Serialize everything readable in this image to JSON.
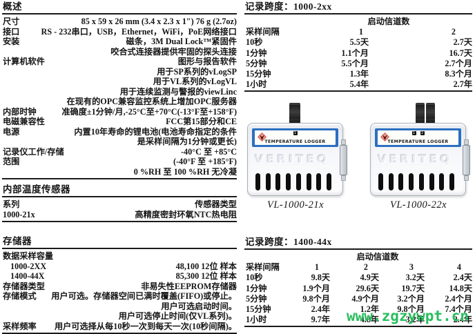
{
  "left_column": {
    "sections": [
      {
        "id": "overview",
        "title": "概述",
        "rows": [
          {
            "label": "尺寸",
            "values": [
              "85 x 59 x 26 mm (3.4 x 2.3 x 1″) 76 g (2.7oz)"
            ]
          },
          {
            "label": "接口",
            "values": [
              "RS - 232串口，USB，Ethernet，WiFi，PoE网络接口"
            ]
          },
          {
            "label": "安装",
            "values": [
              "磁条，3M Dual Lock™紧固件",
              "咬合式连接器提供牢固的探头连接"
            ]
          },
          {
            "label": "计算机软件",
            "values": [
              "图形与报告软件",
              "用于SP系列的vLogSP",
              "用于VL系列的vLogVL",
              "用于连续监测与警报的viewLinc",
              "在现有的OPC兼容监控系统上增加OPC服务器"
            ]
          },
          {
            "label": "内部时钟",
            "values": [
              "准确度±1分钟/月,-25°C至+70°C(-13°F至+158°F)"
            ]
          },
          {
            "label": "电磁兼容性",
            "values": [
              "FCC第15部分和CE"
            ]
          },
          {
            "label": "电源",
            "values": [
              "内置10年寿命的锂电池(电池寿命指定的条件",
              "是采样间隔为1分钟或更长)"
            ]
          },
          {
            "label": "记录仪工作/存储",
            "values": [
              "-40°C 至 +85°C"
            ]
          },
          {
            "label": "范围",
            "values": [
              "(-40°F 至 +185°F)",
              "0 %RH 至 100 %RH 无冷凝"
            ]
          }
        ]
      },
      {
        "id": "sensor",
        "title": "内部温度传感器",
        "rows": [
          {
            "label": "系列",
            "values": [
              "传感器类型"
            ]
          },
          {
            "label": "1000-21x",
            "values": [
              "高精度密封环氧NTC热电阻"
            ]
          }
        ]
      },
      {
        "id": "memory",
        "title": "存储器",
        "rows": [
          {
            "label": "数据采样容量",
            "values": []
          },
          {
            "label": "1000-2XX",
            "indent": true,
            "values": [
              "48,100 12位 样本"
            ]
          },
          {
            "label": "1400-44X",
            "indent": true,
            "values": [
              "85,300 12位 样本"
            ]
          },
          {
            "label": "存储器类型",
            "values": [
              "非易失性EEPROM存储器"
            ]
          },
          {
            "label": "存储模式",
            "values": [
              "用户可选。存储器空间已满时覆盖(FIFO)或停止。",
              "用户可选启动时间。",
              "用户可选停止时间(仅VL系列)。"
            ]
          },
          {
            "label": "采样频率",
            "values": [
              "用户可选择从每10秒一次到每天一次(10秒间隔)。"
            ]
          }
        ]
      }
    ]
  },
  "right_column": {
    "span_tables": [
      {
        "id": "span-1000",
        "title": "记录跨度：1000-2xx",
        "channels_header": "启动信道数",
        "interval_header": "采样间隔",
        "channels": [
          "1",
          "2"
        ],
        "rows": [
          {
            "interval": "10秒",
            "values": [
              "5.5天",
              "2.7天"
            ]
          },
          {
            "interval": "1分钟",
            "values": [
              "1.1个月",
              "16.7天"
            ]
          },
          {
            "interval": "5分钟",
            "values": [
              "5.5个月",
              "2.7个月"
            ]
          },
          {
            "interval": "15分钟",
            "values": [
              "1.3年",
              "8.3个月"
            ]
          },
          {
            "interval": "1小时",
            "values": [
              "5.4年",
              "2.7年"
            ]
          }
        ]
      },
      {
        "id": "span-1400",
        "title": "记录跨度：1400-44x",
        "channels_header": "启动信道数",
        "interval_header": "采样间隔",
        "channels": [
          "1",
          "2",
          "3",
          "4"
        ],
        "rows": [
          {
            "interval": "10秒",
            "values": [
              "9.8天",
              "4.9天",
              "3.2天",
              "2.4天"
            ]
          },
          {
            "interval": "1分钟",
            "values": [
              "1.9个月",
              "29.6天",
              "19.7天",
              "14.8天"
            ]
          },
          {
            "interval": "5分钟",
            "values": [
              "9.8个月",
              "4.9个月",
              "3.2个月",
              "2.4个月"
            ]
          },
          {
            "interval": "15分钟",
            "values": [
              "2.4年",
              "1.2年",
              "9.8个月",
              "7.4个月"
            ]
          },
          {
            "interval": "1小时",
            "values": [
              "9.7年",
              "4.8年",
              "3.2年",
              "2.4年"
            ]
          }
        ]
      }
    ],
    "devices": [
      {
        "caption": "VL-1000-21x",
        "band_label": "TEMPERATURE LOGGER",
        "brand": "VERITEQ",
        "indicators": [
          "1"
        ],
        "probe_ports": 1
      },
      {
        "caption": "VL-1000-22x",
        "band_label": "TEMPERATURE LOGGER",
        "brand": "VERITEQ",
        "indicators": [
          "1",
          "2"
        ],
        "probe_ports": 2
      }
    ]
  },
  "watermark": {
    "text": "www.zgzywpt.cn",
    "color": "#29bd5d"
  },
  "colors": {
    "rule_line": "#1a1a1a",
    "band_blue": "#2b6fc1",
    "logo_red": "#b8372a"
  }
}
